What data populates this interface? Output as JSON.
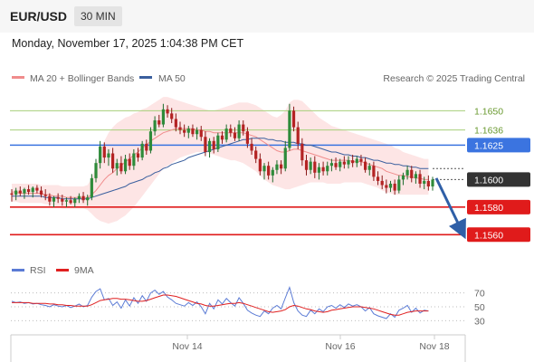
{
  "header": {
    "symbol": "EUR/USD",
    "timeframe": "30 MIN",
    "datetime": "Monday, November 17, 2025 1:04:38 PM CET"
  },
  "legend": {
    "items": [
      {
        "label": "MA 20 + Bollinger Bands",
        "color": "#f08c8c"
      },
      {
        "label": "MA 50",
        "color": "#3a5f9e"
      }
    ],
    "credit": "Research © 2025 Trading Central"
  },
  "rsi_legend": [
    {
      "label": "RSI",
      "color": "#5b7bd5"
    },
    {
      "label": "9MA",
      "color": "#e02020"
    }
  ],
  "chart_data": {
    "type": "candlestick",
    "price_range": [
      1.1549,
      1.1666
    ],
    "x_labels": [
      "Nov 14",
      "Nov 16",
      "Nov 18"
    ],
    "levels": [
      {
        "value": 1.165,
        "label": "1.1650",
        "style": "thin",
        "color": "#a6cf7a",
        "label_color": "#6a9a30"
      },
      {
        "value": 1.1636,
        "label": "1.1636",
        "style": "thin",
        "color": "#a6cf7a",
        "label_color": "#6a9a30"
      },
      {
        "value": 1.1625,
        "label": "1.1625",
        "style": "thick",
        "color": "#3b74e0",
        "label_color": "#ffffff"
      },
      {
        "value": 1.16,
        "label": "1.1600",
        "style": "current",
        "color": "#333333",
        "label_color": "#ffffff"
      },
      {
        "value": 1.158,
        "label": "1.1580",
        "style": "thick",
        "color": "#e01b1b",
        "label_color": "#ffffff"
      },
      {
        "value": 1.156,
        "label": "1.1560",
        "style": "thick",
        "color": "#e01b1b",
        "label_color": "#ffffff"
      }
    ],
    "ohlc": [
      [
        1.159,
        1.1593,
        1.1584,
        1.1589
      ],
      [
        1.1589,
        1.1594,
        1.1585,
        1.1592
      ],
      [
        1.1592,
        1.1595,
        1.1588,
        1.159
      ],
      [
        1.159,
        1.1594,
        1.1586,
        1.1593
      ],
      [
        1.1593,
        1.1596,
        1.1589,
        1.1591
      ],
      [
        1.1591,
        1.1595,
        1.1587,
        1.1594
      ],
      [
        1.1594,
        1.1596,
        1.159,
        1.1592
      ],
      [
        1.1592,
        1.1595,
        1.1587,
        1.1589
      ],
      [
        1.1589,
        1.1593,
        1.1585,
        1.1588
      ],
      [
        1.1588,
        1.159,
        1.1581,
        1.1584
      ],
      [
        1.1584,
        1.1588,
        1.158,
        1.1587
      ],
      [
        1.1587,
        1.159,
        1.1583,
        1.1586
      ],
      [
        1.1586,
        1.1589,
        1.1581,
        1.1584
      ],
      [
        1.1584,
        1.1587,
        1.158,
        1.1585
      ],
      [
        1.1585,
        1.1588,
        1.1582,
        1.1583
      ],
      [
        1.1583,
        1.1587,
        1.158,
        1.1586
      ],
      [
        1.1586,
        1.159,
        1.1583,
        1.1588
      ],
      [
        1.1588,
        1.1591,
        1.1583,
        1.1585
      ],
      [
        1.1585,
        1.1589,
        1.1581,
        1.1587
      ],
      [
        1.1587,
        1.1604,
        1.1585,
        1.1601
      ],
      [
        1.1601,
        1.1615,
        1.1598,
        1.1612
      ],
      [
        1.1612,
        1.1628,
        1.1608,
        1.1624
      ],
      [
        1.1624,
        1.1627,
        1.1612,
        1.1616
      ],
      [
        1.1616,
        1.1622,
        1.161,
        1.1619
      ],
      [
        1.1619,
        1.1623,
        1.1605,
        1.1608
      ],
      [
        1.1608,
        1.1615,
        1.1603,
        1.1612
      ],
      [
        1.1612,
        1.1617,
        1.1604,
        1.1606
      ],
      [
        1.1606,
        1.1618,
        1.1604,
        1.1615
      ],
      [
        1.1615,
        1.1619,
        1.1607,
        1.161
      ],
      [
        1.161,
        1.1622,
        1.1607,
        1.1619
      ],
      [
        1.1619,
        1.1623,
        1.1613,
        1.1616
      ],
      [
        1.1616,
        1.1628,
        1.1614,
        1.1626
      ],
      [
        1.1626,
        1.1629,
        1.1618,
        1.1621
      ],
      [
        1.1621,
        1.1638,
        1.1619,
        1.1635
      ],
      [
        1.1635,
        1.1646,
        1.1632,
        1.1643
      ],
      [
        1.1643,
        1.1647,
        1.1638,
        1.164
      ],
      [
        1.164,
        1.1655,
        1.1638,
        1.1651
      ],
      [
        1.1651,
        1.1654,
        1.1645,
        1.1648
      ],
      [
        1.1648,
        1.1652,
        1.1641,
        1.1644
      ],
      [
        1.1644,
        1.1648,
        1.1635,
        1.1638
      ],
      [
        1.1638,
        1.1642,
        1.1633,
        1.1636
      ],
      [
        1.1636,
        1.164,
        1.1631,
        1.1634
      ],
      [
        1.1634,
        1.1639,
        1.163,
        1.1637
      ],
      [
        1.1637,
        1.164,
        1.1631,
        1.1633
      ],
      [
        1.1633,
        1.1638,
        1.1629,
        1.1636
      ],
      [
        1.1636,
        1.1639,
        1.1628,
        1.1631
      ],
      [
        1.1631,
        1.1635,
        1.1617,
        1.162
      ],
      [
        1.162,
        1.163,
        1.1616,
        1.1628
      ],
      [
        1.1628,
        1.1631,
        1.1619,
        1.1622
      ],
      [
        1.1622,
        1.1634,
        1.162,
        1.1632
      ],
      [
        1.1632,
        1.1635,
        1.1626,
        1.1629
      ],
      [
        1.1629,
        1.164,
        1.1627,
        1.1637
      ],
      [
        1.1637,
        1.164,
        1.1631,
        1.1634
      ],
      [
        1.1634,
        1.1638,
        1.1628,
        1.163
      ],
      [
        1.163,
        1.1643,
        1.1628,
        1.164
      ],
      [
        1.164,
        1.1643,
        1.1632,
        1.1635
      ],
      [
        1.1635,
        1.1638,
        1.1623,
        1.1626
      ],
      [
        1.1626,
        1.163,
        1.1618,
        1.1621
      ],
      [
        1.1621,
        1.1624,
        1.1612,
        1.1615
      ],
      [
        1.1615,
        1.1619,
        1.1603,
        1.1606
      ],
      [
        1.1606,
        1.1612,
        1.16,
        1.161
      ],
      [
        1.161,
        1.1613,
        1.16,
        1.1603
      ],
      [
        1.1603,
        1.1609,
        1.1598,
        1.1607
      ],
      [
        1.1607,
        1.1614,
        1.1604,
        1.1611
      ],
      [
        1.1611,
        1.1614,
        1.1604,
        1.1608
      ],
      [
        1.1608,
        1.1628,
        1.1606,
        1.1623
      ],
      [
        1.1623,
        1.1655,
        1.1621,
        1.165
      ],
      [
        1.165,
        1.1653,
        1.1635,
        1.1638
      ],
      [
        1.1638,
        1.1642,
        1.1622,
        1.1626
      ],
      [
        1.1626,
        1.163,
        1.161,
        1.1614
      ],
      [
        1.1614,
        1.1618,
        1.1603,
        1.1607
      ],
      [
        1.1607,
        1.1616,
        1.1604,
        1.1613
      ],
      [
        1.1613,
        1.1617,
        1.1601,
        1.1605
      ],
      [
        1.1605,
        1.1612,
        1.16,
        1.1609
      ],
      [
        1.1609,
        1.1613,
        1.1603,
        1.1606
      ],
      [
        1.1606,
        1.1613,
        1.1603,
        1.161
      ],
      [
        1.161,
        1.1615,
        1.1606,
        1.1612
      ],
      [
        1.1612,
        1.1616,
        1.1607,
        1.1609
      ],
      [
        1.1609,
        1.1615,
        1.1606,
        1.1613
      ],
      [
        1.1613,
        1.1617,
        1.1608,
        1.1611
      ],
      [
        1.1611,
        1.1617,
        1.1608,
        1.1614
      ],
      [
        1.1614,
        1.1618,
        1.1609,
        1.1612
      ],
      [
        1.1612,
        1.1617,
        1.1609,
        1.1615
      ],
      [
        1.1615,
        1.1618,
        1.161,
        1.1613
      ],
      [
        1.1613,
        1.1616,
        1.1605,
        1.1607
      ],
      [
        1.1607,
        1.1612,
        1.1603,
        1.161
      ],
      [
        1.161,
        1.1613,
        1.1599,
        1.1602
      ],
      [
        1.1602,
        1.1606,
        1.1596,
        1.1599
      ],
      [
        1.1599,
        1.1603,
        1.1593,
        1.1596
      ],
      [
        1.1596,
        1.16,
        1.159,
        1.1594
      ],
      [
        1.1594,
        1.1599,
        1.1591,
        1.1597
      ],
      [
        1.1597,
        1.16,
        1.1589,
        1.1592
      ],
      [
        1.1592,
        1.1603,
        1.159,
        1.16
      ],
      [
        1.16,
        1.1605,
        1.1596,
        1.1603
      ],
      [
        1.1603,
        1.161,
        1.16,
        1.1607
      ],
      [
        1.1607,
        1.161,
        1.1598,
        1.1601
      ],
      [
        1.1601,
        1.1606,
        1.1597,
        1.1604
      ],
      [
        1.1604,
        1.1607,
        1.1594,
        1.1597
      ],
      [
        1.1597,
        1.1602,
        1.1593,
        1.1599
      ],
      [
        1.1599,
        1.1603,
        1.1592,
        1.1595
      ],
      [
        1.1595,
        1.1602,
        1.1592,
        1.16
      ]
    ],
    "ma20": [
      1.1591,
      1.1591,
      1.159,
      1.159,
      1.159,
      1.159,
      1.159,
      1.159,
      1.1589,
      1.1589,
      1.1588,
      1.1588,
      1.1588,
      1.1587,
      1.1587,
      1.1587,
      1.1587,
      1.1587,
      1.1587,
      1.1589,
      1.1592,
      1.1596,
      1.16,
      1.1603,
      1.1605,
      1.1608,
      1.161,
      1.1613,
      1.1615,
      1.1618,
      1.162,
      1.1623,
      1.1625,
      1.1628,
      1.163,
      1.1632,
      1.1634,
      1.1635,
      1.1636,
      1.1637,
      1.1637,
      1.1637,
      1.1637,
      1.1637,
      1.1636,
      1.1636,
      1.1635,
      1.1635,
      1.1634,
      1.1634,
      1.1634,
      1.1634,
      1.1634,
      1.1634,
      1.1634,
      1.1634,
      1.1633,
      1.1632,
      1.1631,
      1.1629,
      1.1627,
      1.1625,
      1.1623,
      1.1621,
      1.162,
      1.162,
      1.1621,
      1.1622,
      1.1622,
      1.1621,
      1.162,
      1.1619,
      1.1618,
      1.1617,
      1.1616,
      1.1615,
      1.1614,
      1.1614,
      1.1614,
      1.1614,
      1.1614,
      1.1613,
      1.1613,
      1.1613,
      1.1612,
      1.1611,
      1.161,
      1.1609,
      1.1608,
      1.1606,
      1.1605,
      1.1604,
      1.1603,
      1.1603,
      1.1602,
      1.1602,
      1.1601,
      1.1601,
      1.16,
      1.16
    ],
    "ma50": [
      1.1588,
      1.1588,
      1.1588,
      1.1588,
      1.1588,
      1.1588,
      1.1588,
      1.1588,
      1.1587,
      1.1587,
      1.1587,
      1.1587,
      1.1586,
      1.1586,
      1.1586,
      1.1586,
      1.1586,
      1.1586,
      1.1586,
      1.1587,
      1.1588,
      1.1589,
      1.159,
      1.1591,
      1.1592,
      1.1593,
      1.1594,
      1.1595,
      1.1597,
      1.1598,
      1.1599,
      1.16,
      1.1602,
      1.1603,
      1.1605,
      1.1606,
      1.1608,
      1.1609,
      1.1611,
      1.1612,
      1.1613,
      1.1614,
      1.1616,
      1.1617,
      1.1618,
      1.1619,
      1.162,
      1.1621,
      1.1622,
      1.1623,
      1.1624,
      1.1625,
      1.1626,
      1.1627,
      1.1628,
      1.1629,
      1.1629,
      1.163,
      1.163,
      1.163,
      1.163,
      1.1629,
      1.1629,
      1.1628,
      1.1628,
      1.1627,
      1.1627,
      1.1627,
      1.1626,
      1.1626,
      1.1625,
      1.1625,
      1.1624,
      1.1623,
      1.1622,
      1.1621,
      1.162,
      1.162,
      1.1619,
      1.1618,
      1.1618,
      1.1617,
      1.1617,
      1.1616,
      1.1616,
      1.1615,
      1.1614,
      1.1614,
      1.1613,
      1.1612,
      1.1612,
      1.1611,
      1.1611,
      1.161,
      1.161,
      1.1609,
      1.1609,
      1.1608,
      1.1608,
      1.1608
    ],
    "bb_upper": [
      1.1597,
      1.1597,
      1.1597,
      1.1597,
      1.1597,
      1.1597,
      1.1597,
      1.1596,
      1.1596,
      1.1596,
      1.1596,
      1.1596,
      1.1595,
      1.1595,
      1.1595,
      1.1595,
      1.1595,
      1.1595,
      1.1596,
      1.1601,
      1.161,
      1.162,
      1.1628,
      1.1634,
      1.1638,
      1.1641,
      1.1643,
      1.1645,
      1.1646,
      1.1648,
      1.1649,
      1.1651,
      1.1652,
      1.1654,
      1.1656,
      1.1658,
      1.166,
      1.166,
      1.1659,
      1.1658,
      1.1657,
      1.1656,
      1.1655,
      1.1654,
      1.1653,
      1.1652,
      1.1651,
      1.165,
      1.165,
      1.1651,
      1.1652,
      1.1653,
      1.1654,
      1.1655,
      1.1656,
      1.1656,
      1.1656,
      1.1655,
      1.1654,
      1.1652,
      1.165,
      1.1648,
      1.1646,
      1.1645,
      1.1647,
      1.165,
      1.1656,
      1.1658,
      1.1658,
      1.1657,
      1.1654,
      1.1651,
      1.1648,
      1.1645,
      1.1643,
      1.1641,
      1.1639,
      1.1638,
      1.1637,
      1.1636,
      1.1635,
      1.1634,
      1.1633,
      1.1632,
      1.1631,
      1.163,
      1.1629,
      1.1628,
      1.1627,
      1.1626,
      1.1625,
      1.1623,
      1.1622,
      1.162,
      1.1619,
      1.1618,
      1.1617,
      1.1616,
      1.1615,
      1.1615
    ],
    "bb_lower": [
      1.1584,
      1.1584,
      1.1583,
      1.1583,
      1.1583,
      1.1583,
      1.1583,
      1.1583,
      1.1582,
      1.1582,
      1.1581,
      1.158,
      1.1579,
      1.1579,
      1.1579,
      1.1579,
      1.1579,
      1.1579,
      1.1578,
      1.1575,
      1.1572,
      1.157,
      1.1569,
      1.1568,
      1.1569,
      1.157,
      1.1572,
      1.1574,
      1.1577,
      1.158,
      1.1584,
      1.1588,
      1.1592,
      1.1596,
      1.16,
      1.1604,
      1.1608,
      1.161,
      1.1612,
      1.1614,
      1.1616,
      1.1617,
      1.1618,
      1.1619,
      1.162,
      1.162,
      1.162,
      1.1619,
      1.1618,
      1.1617,
      1.1616,
      1.1615,
      1.1614,
      1.1614,
      1.1613,
      1.1612,
      1.161,
      1.1608,
      1.1606,
      1.1603,
      1.16,
      1.1598,
      1.1596,
      1.1595,
      1.1594,
      1.1593,
      1.1593,
      1.1594,
      1.1595,
      1.1596,
      1.1597,
      1.1598,
      1.1598,
      1.1598,
      1.1598,
      1.1597,
      1.1597,
      1.1597,
      1.1597,
      1.1598,
      1.1598,
      1.1598,
      1.1598,
      1.1598,
      1.1597,
      1.1596,
      1.1595,
      1.1594,
      1.1592,
      1.1591,
      1.159,
      1.1589,
      1.1589,
      1.1589,
      1.1589,
      1.1589,
      1.1589,
      1.1589,
      1.1589,
      1.1589
    ],
    "projection": {
      "from": 1.1601,
      "to": 1.1561
    },
    "rsi": {
      "range": [
        20,
        80
      ],
      "ticks": [
        70,
        50,
        30
      ],
      "rsi": [
        58,
        56,
        57,
        55,
        56,
        54,
        55,
        53,
        52,
        50,
        53,
        51,
        50,
        52,
        49,
        51,
        54,
        50,
        52,
        64,
        72,
        76,
        60,
        62,
        52,
        57,
        48,
        60,
        51,
        63,
        55,
        66,
        58,
        70,
        74,
        68,
        72,
        64,
        60,
        55,
        53,
        51,
        56,
        52,
        57,
        50,
        40,
        55,
        47,
        60,
        54,
        62,
        56,
        51,
        63,
        55,
        45,
        41,
        38,
        36,
        44,
        40,
        48,
        52,
        47,
        63,
        78,
        56,
        44,
        38,
        36,
        45,
        40,
        47,
        43,
        50,
        52,
        48,
        53,
        49,
        54,
        51,
        53,
        50,
        44,
        49,
        40,
        37,
        35,
        33,
        40,
        35,
        45,
        48,
        52,
        42,
        48,
        41,
        45,
        44
      ],
      "ma9": [
        56,
        56,
        56,
        56,
        56,
        55,
        55,
        55,
        55,
        54,
        54,
        53,
        53,
        52,
        52,
        51,
        51,
        51,
        51,
        53,
        56,
        59,
        60,
        61,
        62,
        62,
        61,
        61,
        60,
        59,
        58,
        58,
        59,
        61,
        63,
        65,
        67,
        67,
        66,
        65,
        63,
        61,
        59,
        57,
        55,
        54,
        52,
        51,
        51,
        52,
        53,
        54,
        55,
        55,
        56,
        55,
        53,
        51,
        49,
        47,
        45,
        43,
        42,
        43,
        44,
        46,
        50,
        52,
        51,
        49,
        47,
        46,
        44,
        43,
        42,
        43,
        45,
        46,
        47,
        48,
        49,
        50,
        50,
        50,
        49,
        48,
        47,
        45,
        43,
        41,
        39,
        38,
        38,
        40,
        42,
        43,
        44,
        44,
        44,
        44
      ]
    }
  }
}
